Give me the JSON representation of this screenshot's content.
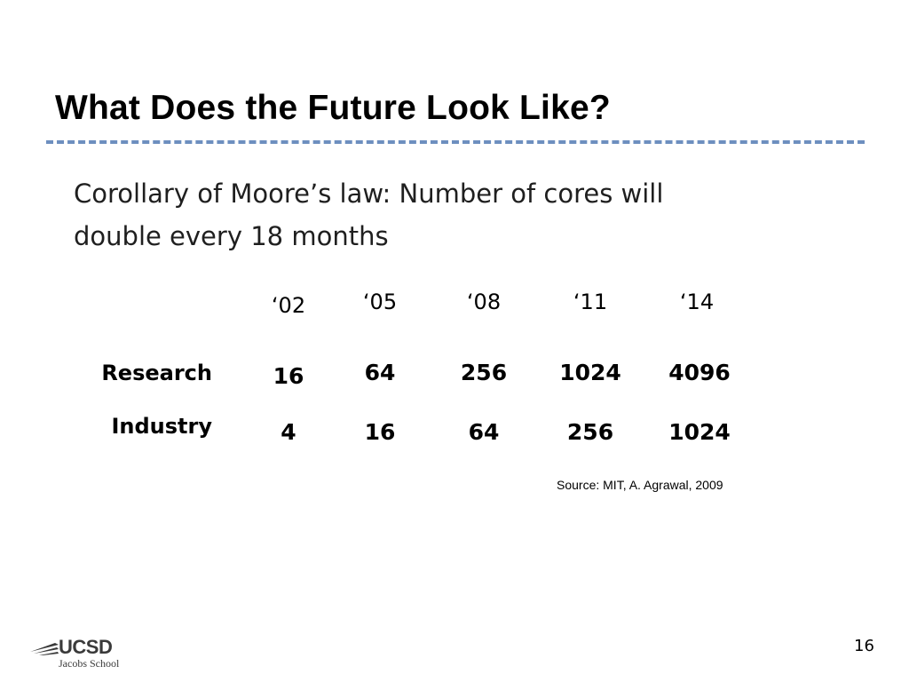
{
  "slide": {
    "title": "What Does the Future Look Like?",
    "body_lines": [
      "Corollary of Moore’s law: Number of cores will",
      "double every 18 months"
    ],
    "table": {
      "years": [
        "‘02",
        "‘05",
        "‘08",
        "‘11",
        "‘14"
      ],
      "rows": [
        {
          "label": "Research",
          "values": [
            "16",
            "64",
            "256",
            "1024",
            "4096"
          ]
        },
        {
          "label": "Industry",
          "values": [
            "4",
            "16",
            "64",
            "256",
            "1024"
          ]
        }
      ]
    },
    "source": "Source: MIT, A. Agrawal, 2009",
    "logo": {
      "name": "UCSD",
      "subtitle": "Jacobs School"
    },
    "page_number": "16",
    "colors": {
      "title_rule": "#6d8fbf",
      "logo": "#3a3a3a"
    }
  }
}
